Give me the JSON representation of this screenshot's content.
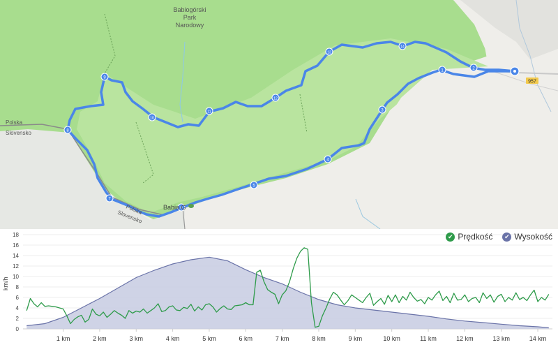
{
  "map": {
    "labels": {
      "park": [
        "Babiogórski",
        "Park",
        "Narodowy"
      ],
      "border_top": [
        "Polska",
        "Slovensko"
      ],
      "border_bottom": [
        "Polska",
        "Slovensko"
      ],
      "peak": "Babia G",
      "road": "957"
    },
    "waypoints": [
      "1",
      "2",
      "3",
      "4",
      "5",
      "6",
      "7",
      "8",
      "9",
      "10",
      "11",
      "12",
      "13",
      "14"
    ],
    "colors": {
      "route": "#4a86e8",
      "park": "#a8dd8e",
      "outside": "#efeeea",
      "slovakia": "#e5e7e3"
    }
  },
  "legend": {
    "speed": {
      "label": "Prędkość",
      "color": "#2e9b4a"
    },
    "elevation": {
      "label": "Wysokość",
      "color": "#6a73a8"
    }
  },
  "chart_data": {
    "type": "line",
    "ylabel": "km/h",
    "yticks": [
      0,
      2,
      4,
      6,
      8,
      10,
      12,
      14,
      16,
      18
    ],
    "xtick_labels": [
      "1 km",
      "2 km",
      "3 km",
      "4 km",
      "5 km",
      "6 km",
      "7 km",
      "8 km",
      "9 km",
      "10 km",
      "11 km",
      "12 km",
      "13 km",
      "14 km"
    ],
    "xlim": [
      -0.1,
      14.4
    ],
    "ylim": [
      0,
      18
    ],
    "series": [
      {
        "name": "Wysokość",
        "type": "area",
        "color": "#6a73a8",
        "x": [
          0,
          0.5,
          1,
          1.5,
          2,
          2.5,
          3,
          3.5,
          4,
          4.5,
          5,
          5.5,
          6,
          6.5,
          7,
          7.5,
          8,
          8.5,
          9,
          9.5,
          10,
          10.5,
          11,
          11.5,
          12,
          12.5,
          13,
          13.5,
          14,
          14.3
        ],
        "values": [
          0.6,
          1.0,
          2.2,
          4.0,
          5.8,
          7.8,
          9.8,
          11.2,
          12.4,
          13.2,
          13.7,
          13.0,
          11.3,
          9.8,
          8.6,
          7.0,
          5.6,
          4.6,
          4.0,
          3.6,
          3.2,
          2.8,
          2.4,
          1.9,
          1.5,
          1.2,
          0.9,
          0.6,
          0.4,
          0.2
        ]
      },
      {
        "name": "Prędkość",
        "type": "line",
        "color": "#2e9b4a",
        "x": [
          0,
          0.1,
          0.2,
          0.3,
          0.4,
          0.5,
          0.6,
          0.7,
          0.8,
          0.9,
          1.0,
          1.1,
          1.2,
          1.3,
          1.4,
          1.5,
          1.6,
          1.7,
          1.8,
          1.9,
          2.0,
          2.1,
          2.2,
          2.3,
          2.4,
          2.5,
          2.6,
          2.7,
          2.8,
          2.9,
          3.0,
          3.1,
          3.2,
          3.3,
          3.4,
          3.5,
          3.6,
          3.7,
          3.8,
          3.9,
          4.0,
          4.1,
          4.2,
          4.3,
          4.4,
          4.5,
          4.6,
          4.7,
          4.8,
          4.9,
          5.0,
          5.1,
          5.2,
          5.3,
          5.4,
          5.5,
          5.6,
          5.7,
          5.8,
          5.9,
          6.0,
          6.1,
          6.2,
          6.3,
          6.4,
          6.5,
          6.6,
          6.7,
          6.8,
          6.9,
          7.0,
          7.1,
          7.2,
          7.3,
          7.4,
          7.5,
          7.6,
          7.7,
          7.8,
          7.9,
          8.0,
          8.1,
          8.2,
          8.3,
          8.4,
          8.5,
          8.6,
          8.7,
          8.8,
          8.9,
          9.0,
          9.1,
          9.2,
          9.3,
          9.4,
          9.5,
          9.6,
          9.7,
          9.8,
          9.9,
          10.0,
          10.1,
          10.2,
          10.3,
          10.4,
          10.5,
          10.6,
          10.7,
          10.8,
          10.9,
          11.0,
          11.1,
          11.2,
          11.3,
          11.4,
          11.5,
          11.6,
          11.7,
          11.8,
          11.9,
          12.0,
          12.1,
          12.2,
          12.3,
          12.4,
          12.5,
          12.6,
          12.7,
          12.8,
          12.9,
          13.0,
          13.1,
          13.2,
          13.3,
          13.4,
          13.5,
          13.6,
          13.7,
          13.8,
          13.9,
          14.0,
          14.1,
          14.2,
          14.3
        ],
        "values": [
          3.5,
          5.8,
          4.8,
          4.2,
          5.0,
          4.3,
          4.4,
          4.3,
          4.2,
          4.0,
          3.8,
          2.5,
          1.0,
          1.8,
          2.3,
          2.6,
          1.3,
          1.8,
          3.8,
          2.8,
          2.5,
          3.2,
          2.2,
          2.8,
          3.5,
          3.0,
          2.6,
          2.0,
          3.5,
          3.0,
          3.4,
          3.2,
          3.8,
          3.0,
          3.5,
          4.0,
          4.8,
          3.3,
          3.5,
          4.2,
          4.4,
          3.6,
          3.5,
          4.1,
          3.9,
          4.7,
          3.4,
          4.2,
          3.6,
          4.6,
          4.8,
          4.2,
          3.2,
          3.9,
          4.4,
          3.8,
          3.7,
          4.4,
          4.5,
          4.6,
          5.0,
          4.6,
          4.6,
          10.8,
          11.2,
          9.0,
          7.5,
          7.0,
          6.6,
          4.8,
          6.5,
          7.3,
          9.0,
          11.5,
          13.5,
          14.8,
          15.5,
          15.2,
          5.0,
          0.3,
          0.5,
          2.5,
          4.0,
          5.7,
          7.0,
          6.5,
          5.5,
          4.6,
          5.4,
          6.5,
          6.0,
          5.5,
          5.0,
          6.0,
          6.8,
          4.5,
          5.2,
          5.8,
          4.7,
          6.4,
          5.2,
          6.5,
          5.0,
          6.2,
          5.5,
          7.0,
          6.0,
          5.3,
          5.6,
          4.8,
          6.0,
          5.5,
          6.5,
          7.2,
          5.4,
          6.2,
          5.0,
          6.8,
          5.5,
          5.6,
          6.5,
          5.2,
          5.8,
          6.0,
          5.0,
          6.9,
          5.8,
          6.5,
          5.1,
          6.2,
          6.6,
          5.2,
          6.0,
          5.5,
          6.9,
          5.6,
          6.0,
          5.4,
          6.5,
          7.4,
          5.2,
          6.0,
          5.5,
          6.6
        ]
      }
    ]
  }
}
